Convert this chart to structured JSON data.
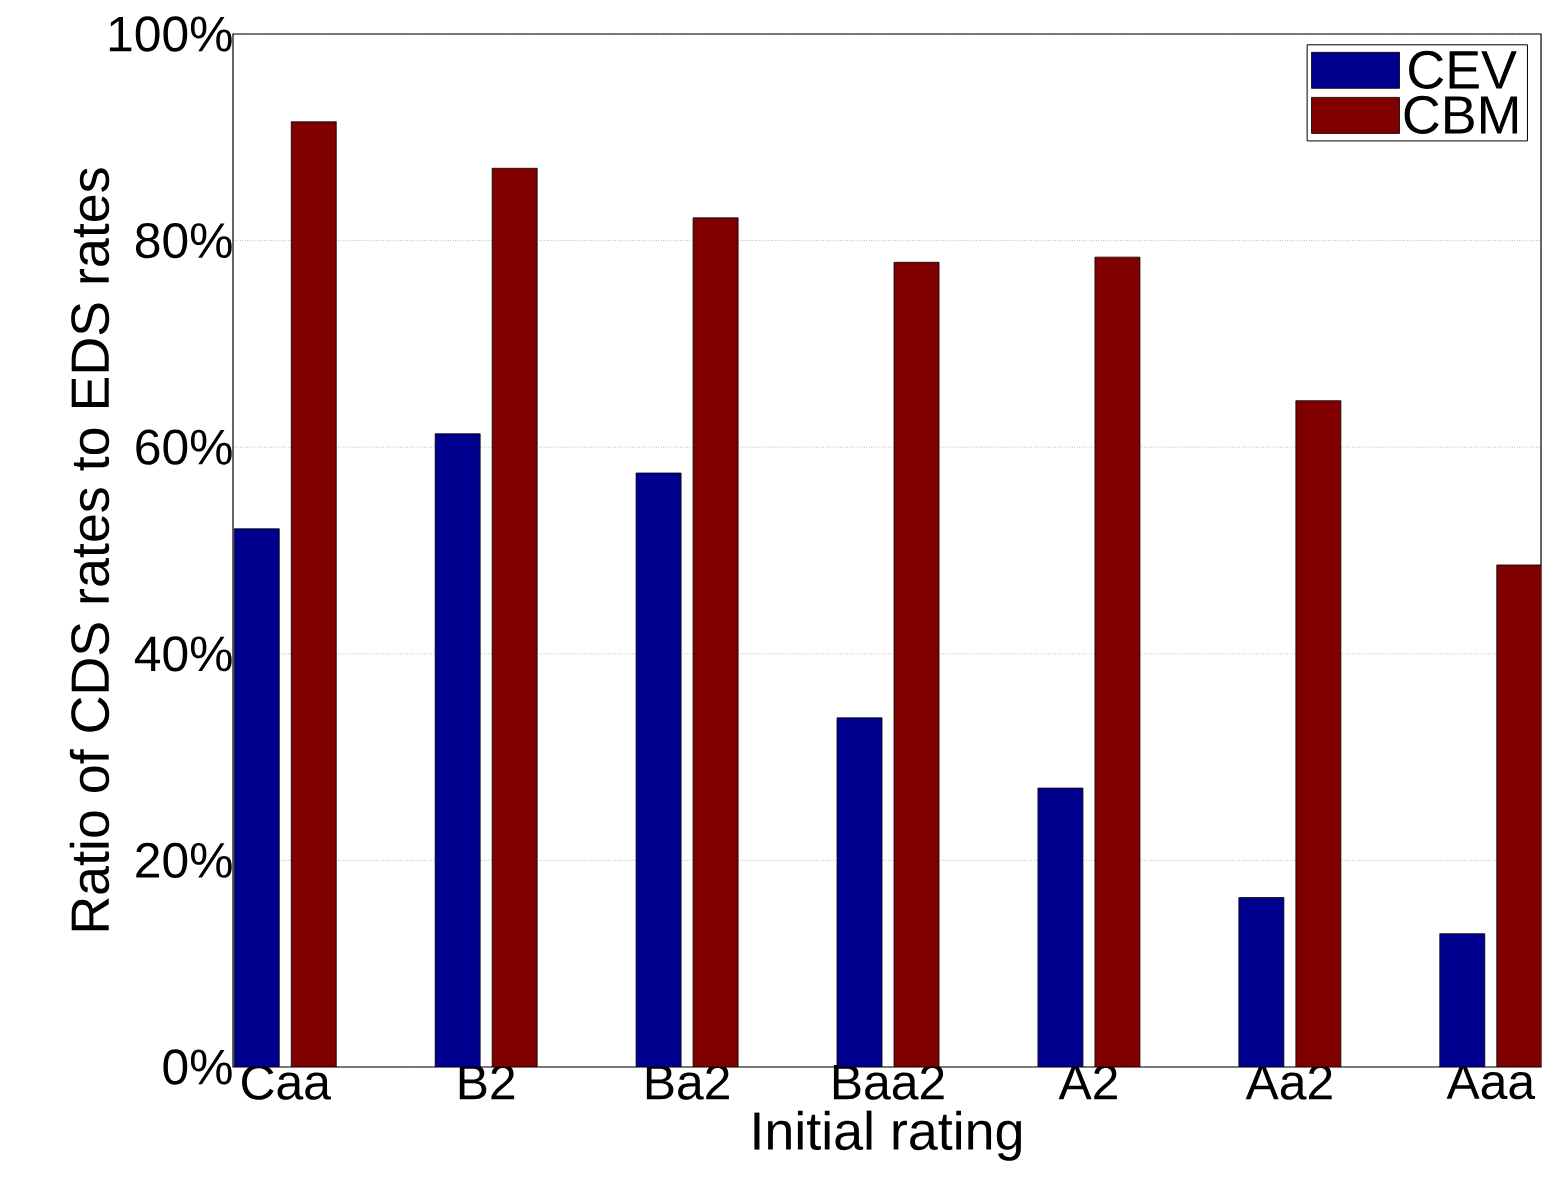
{
  "chart_data": {
    "type": "bar",
    "xlabel": "Initial rating",
    "ylabel": "Ratio of CDS rates to EDS rates",
    "categories": [
      "Caa",
      "B2",
      "Ba2",
      "Baa2",
      "A2",
      "Aa2",
      "Aaa"
    ],
    "series": [
      {
        "name": "CEV",
        "color": "#00008f",
        "values": [
          52.1,
          61.3,
          57.5,
          33.8,
          27.0,
          16.4,
          12.9
        ]
      },
      {
        "name": "CBM",
        "color": "#800000",
        "values": [
          91.5,
          87.0,
          82.2,
          77.9,
          78.4,
          64.5,
          48.6
        ]
      }
    ],
    "ylim": [
      0,
      100
    ],
    "yticks": [
      {
        "value": 0,
        "label": "0%"
      },
      {
        "value": 20,
        "label": "20%"
      },
      {
        "value": 40,
        "label": "40%"
      },
      {
        "value": 60,
        "label": "60%"
      },
      {
        "value": 80,
        "label": "80%"
      },
      {
        "value": 100,
        "label": "100%"
      }
    ],
    "grid": "y",
    "legend": "top right"
  }
}
